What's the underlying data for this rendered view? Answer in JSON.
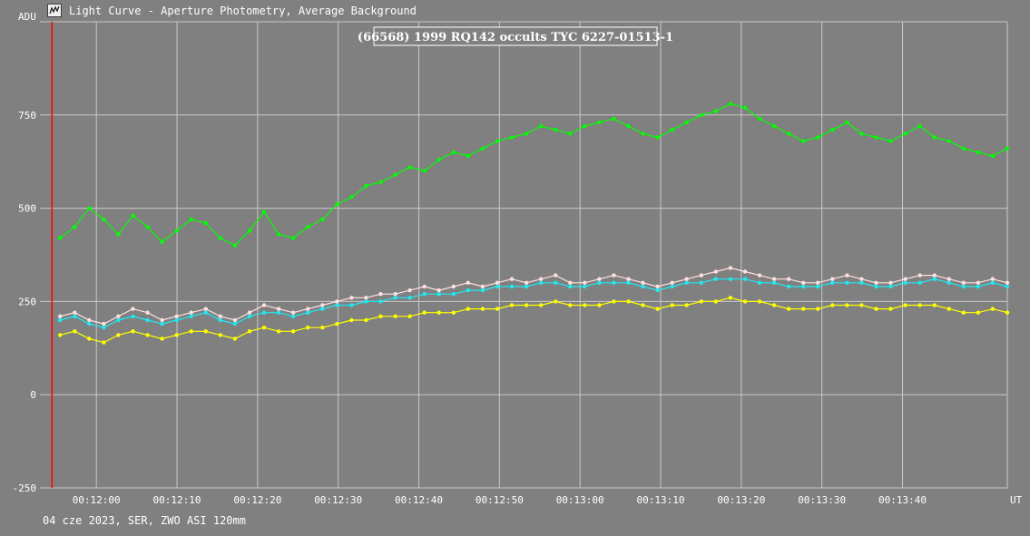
{
  "window": {
    "title": "Light Curve - Aperture Photometry, Average Background",
    "icon": "light-curve-app-icon"
  },
  "footer": {
    "text": "04 cze 2023, SER, ZWO ASI 120mm"
  },
  "colors": {
    "background": "#808080",
    "grid": "#c0c0c0",
    "marker_line": "#ff0000",
    "target": "#00ff00",
    "comp1": "#20e8f0",
    "comp2": "#ffe0e0",
    "comp3": "#ffff00"
  },
  "chart_data": {
    "type": "line",
    "title": "(66568) 1999 RQ142 occults TYC 6227-01513-1",
    "ylabel": "ADU",
    "xlabel": "UT",
    "ylim": [
      -250,
      1000
    ],
    "yticks": [
      -250,
      0,
      250,
      500,
      750
    ],
    "xlim_seconds": [
      -7,
      113
    ],
    "xticks": [
      "00:12:00",
      "00:12:10",
      "00:12:20",
      "00:12:30",
      "00:12:40",
      "00:12:50",
      "00:13:00",
      "00:13:10",
      "00:13:20",
      "00:13:30",
      "00:13:40"
    ],
    "xtick_seconds": [
      0,
      10,
      20,
      30,
      40,
      50,
      60,
      70,
      80,
      90,
      100
    ],
    "marker_seconds": -5.5,
    "grid": true,
    "legend": "none",
    "series": [
      {
        "color": "#00ff00",
        "values": [
          420,
          450,
          500,
          470,
          430,
          480,
          450,
          410,
          440,
          470,
          460,
          420,
          400,
          440,
          490,
          430,
          420,
          450,
          470,
          510,
          530,
          560,
          570,
          590,
          610,
          600,
          630,
          650,
          640,
          660,
          680,
          690,
          700,
          720,
          710,
          700,
          720,
          730,
          740,
          720,
          700,
          690,
          710,
          730,
          750,
          760,
          780,
          770,
          740,
          720,
          700,
          680,
          690,
          710,
          730,
          700,
          690,
          680,
          700,
          720,
          690,
          680,
          660,
          650,
          640,
          660
        ]
      },
      {
        "color": "#ffe0e0",
        "values": [
          210,
          220,
          200,
          190,
          210,
          230,
          220,
          200,
          210,
          220,
          230,
          210,
          200,
          220,
          240,
          230,
          220,
          230,
          240,
          250,
          260,
          260,
          270,
          270,
          280,
          290,
          280,
          290,
          300,
          290,
          300,
          310,
          300,
          310,
          320,
          300,
          300,
          310,
          320,
          310,
          300,
          290,
          300,
          310,
          320,
          330,
          340,
          330,
          320,
          310,
          310,
          300,
          300,
          310,
          320,
          310,
          300,
          300,
          310,
          320,
          320,
          310,
          300,
          300,
          310,
          300
        ]
      },
      {
        "color": "#20e8f0",
        "values": [
          200,
          210,
          190,
          180,
          200,
          210,
          200,
          190,
          200,
          210,
          220,
          200,
          190,
          210,
          220,
          220,
          210,
          220,
          230,
          240,
          240,
          250,
          250,
          260,
          260,
          270,
          270,
          270,
          280,
          280,
          290,
          290,
          290,
          300,
          300,
          290,
          290,
          300,
          300,
          300,
          290,
          280,
          290,
          300,
          300,
          310,
          310,
          310,
          300,
          300,
          290,
          290,
          290,
          300,
          300,
          300,
          290,
          290,
          300,
          300,
          310,
          300,
          290,
          290,
          300,
          290
        ]
      },
      {
        "color": "#ffff00",
        "values": [
          160,
          170,
          150,
          140,
          160,
          170,
          160,
          150,
          160,
          170,
          170,
          160,
          150,
          170,
          180,
          170,
          170,
          180,
          180,
          190,
          200,
          200,
          210,
          210,
          210,
          220,
          220,
          220,
          230,
          230,
          230,
          240,
          240,
          240,
          250,
          240,
          240,
          240,
          250,
          250,
          240,
          230,
          240,
          240,
          250,
          250,
          260,
          250,
          250,
          240,
          230,
          230,
          230,
          240,
          240,
          240,
          230,
          230,
          240,
          240,
          240,
          230,
          220,
          220,
          230,
          220
        ]
      }
    ]
  }
}
